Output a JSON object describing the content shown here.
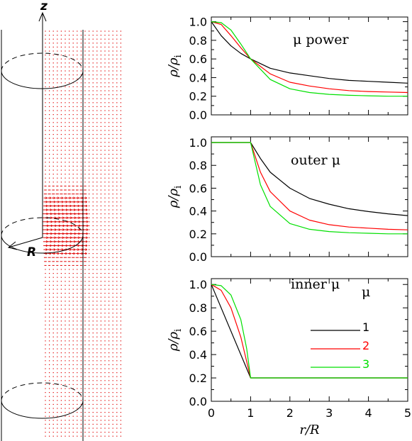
{
  "illustration": {
    "z_label": "z",
    "r_label": "R"
  },
  "chart_data": [
    {
      "type": "line",
      "panel": "mu-power",
      "annotation": "μ power",
      "ylabel": "ρ/ρ_i",
      "xlabel": "",
      "xlim": [
        0,
        5
      ],
      "ylim": [
        0,
        1.05
      ],
      "yticks": [
        "0.0",
        "0.2",
        "0.4",
        "0.6",
        "0.8",
        "1.0"
      ],
      "xticks": [],
      "series": [
        {
          "color": "#000000",
          "x": [
            0,
            0.25,
            0.5,
            0.75,
            1,
            1.5,
            2,
            2.5,
            3,
            3.5,
            4,
            4.5,
            5
          ],
          "y": [
            1.0,
            0.85,
            0.74,
            0.66,
            0.6,
            0.5,
            0.45,
            0.42,
            0.39,
            0.37,
            0.36,
            0.35,
            0.34
          ]
        },
        {
          "color": "#ff0000",
          "x": [
            0,
            0.25,
            0.5,
            0.75,
            1,
            1.5,
            2,
            2.5,
            3,
            3.5,
            4,
            4.5,
            5
          ],
          "y": [
            1.0,
            0.97,
            0.85,
            0.72,
            0.6,
            0.44,
            0.35,
            0.31,
            0.28,
            0.26,
            0.25,
            0.245,
            0.24
          ]
        },
        {
          "color": "#00e000",
          "x": [
            0,
            0.25,
            0.5,
            0.75,
            1,
            1.5,
            2,
            2.5,
            3,
            3.5,
            4,
            4.5,
            5
          ],
          "y": [
            1.0,
            0.99,
            0.91,
            0.76,
            0.6,
            0.38,
            0.28,
            0.24,
            0.22,
            0.21,
            0.205,
            0.2,
            0.2
          ]
        }
      ]
    },
    {
      "type": "line",
      "panel": "outer-mu",
      "annotation": "outer μ",
      "ylabel": "ρ/ρ_i",
      "xlabel": "",
      "xlim": [
        0,
        5
      ],
      "ylim": [
        0,
        1.05
      ],
      "yticks": [
        "0.0",
        "0.2",
        "0.4",
        "0.6",
        "0.8",
        "1.0"
      ],
      "xticks": [],
      "series": [
        {
          "color": "#000000",
          "x": [
            0,
            1,
            1.25,
            1.5,
            2,
            2.5,
            3,
            3.5,
            4,
            4.5,
            5
          ],
          "y": [
            1.0,
            1.0,
            0.86,
            0.74,
            0.6,
            0.51,
            0.46,
            0.42,
            0.395,
            0.375,
            0.36
          ]
        },
        {
          "color": "#ff0000",
          "x": [
            0,
            1,
            1.25,
            1.5,
            2,
            2.5,
            3,
            3.5,
            4,
            4.5,
            5
          ],
          "y": [
            1.0,
            1.0,
            0.74,
            0.57,
            0.4,
            0.32,
            0.28,
            0.26,
            0.25,
            0.24,
            0.235
          ]
        },
        {
          "color": "#00e000",
          "x": [
            0,
            1,
            1.25,
            1.5,
            2,
            2.5,
            3,
            3.5,
            4,
            4.5,
            5
          ],
          "y": [
            1.0,
            1.0,
            0.63,
            0.44,
            0.29,
            0.24,
            0.22,
            0.21,
            0.205,
            0.2,
            0.2
          ]
        }
      ]
    },
    {
      "type": "line",
      "panel": "inner-mu",
      "annotation": "inner μ",
      "legend_title": "μ",
      "ylabel": "ρ/ρ_i",
      "xlabel": "r/R",
      "xlim": [
        0,
        5
      ],
      "ylim": [
        0,
        1.05
      ],
      "yticks": [
        "0.0",
        "0.2",
        "0.4",
        "0.6",
        "0.8",
        "1.0"
      ],
      "xticks": [
        "0",
        "1",
        "2",
        "3",
        "4",
        "5"
      ],
      "series": [
        {
          "name": "1",
          "color": "#000000",
          "x": [
            0,
            1,
            5
          ],
          "y": [
            1.0,
            0.2,
            0.2
          ]
        },
        {
          "name": "2",
          "color": "#ff0000",
          "x": [
            0,
            0.25,
            0.5,
            0.75,
            1,
            5
          ],
          "y": [
            1.0,
            0.95,
            0.8,
            0.55,
            0.2,
            0.2
          ]
        },
        {
          "name": "3",
          "color": "#00e000",
          "x": [
            0,
            0.25,
            0.5,
            0.75,
            0.9,
            1,
            5
          ],
          "y": [
            1.0,
            0.99,
            0.91,
            0.7,
            0.45,
            0.2,
            0.2
          ]
        }
      ]
    }
  ]
}
